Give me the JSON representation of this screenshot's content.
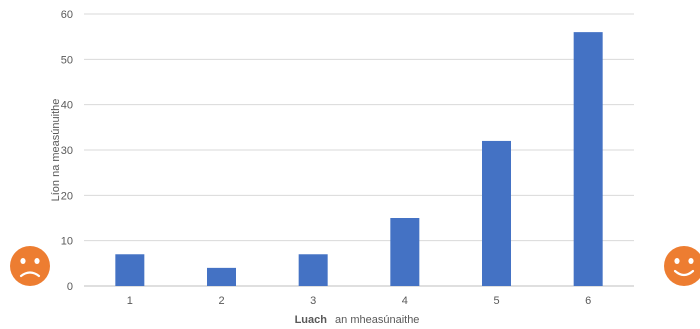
{
  "chart_data": {
    "type": "bar",
    "categories": [
      "1",
      "2",
      "3",
      "4",
      "5",
      "6"
    ],
    "values": [
      7,
      4,
      7,
      15,
      32,
      56
    ],
    "ylim": [
      0,
      60
    ],
    "yticks": [
      "0",
      "10",
      "20",
      "30",
      "40",
      "50",
      "60"
    ],
    "ytick_values": [
      0,
      10,
      20,
      30,
      40,
      50,
      60
    ],
    "ylabel": "Líon na measúnuithe",
    "xlabel_bold": "Luach",
    "xlabel_rest": "an mheasúnaithe",
    "grid": true,
    "legend": "none"
  },
  "colors": {
    "bar": "#4472C4",
    "grid": "#D9D9D9",
    "axis": "#BFBFBF",
    "face": "#ED7D31",
    "face_features": "#FFFFFF"
  },
  "icons": {
    "left": "sad-face-icon",
    "right": "happy-face-icon"
  }
}
